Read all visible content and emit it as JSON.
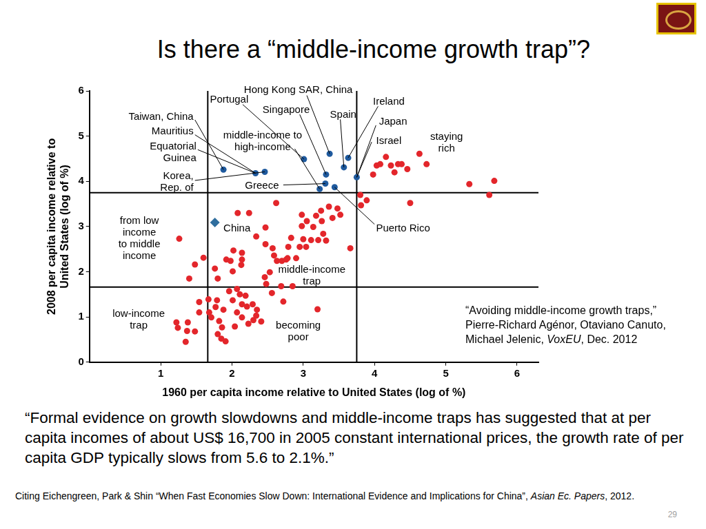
{
  "slide": {
    "title": "Is there a “middle-income growth trap”?",
    "citation": [
      [
        "“Avoiding middle-income growth traps,”"
      ],
      [
        "Pierre-Richard Agénor, Otaviano Canuto,"
      ],
      [
        "Michael Jelenic, ",
        "VoxEU",
        ", Dec. 2012"
      ]
    ],
    "quote": "“Formal evidence on growth slowdowns and middle-income traps has suggested that at per capita incomes of about US$ 16,700 in 2005 constant international prices, the growth rate of per capita GDP typically slows from 5.6 to 2.1%.”",
    "footer": [
      "Citing Eichengreen, Park & Shin “When Fast Economies Slow Down: International Evidence and Implications for China”, ",
      "Asian Ec. Papers",
      ", 2012."
    ],
    "page_number": "29"
  },
  "chart_data": {
    "type": "scatter",
    "x_label": "1960 per capita income relative to United States (log of %)",
    "y_label": [
      "2008 per capita income relative to",
      "United States (log of %)"
    ],
    "xlim": [
      0,
      6.3
    ],
    "xticks": [
      1,
      2,
      3,
      4,
      5,
      6
    ],
    "ylim": [
      0,
      6
    ],
    "yticks": [
      0,
      1,
      2,
      3,
      4,
      5,
      6
    ],
    "grid": false,
    "series": [
      {
        "color": "#e3262b",
        "marker": "circle",
        "x": [
          3.98,
          4.03,
          4.08,
          4.16,
          4.23,
          4.28,
          4.33,
          4.38,
          4.46,
          4.63,
          4.73,
          5.33,
          5.68,
          5.61,
          4.5,
          3.8,
          3.89,
          3.81,
          2.62,
          2.08,
          2.24,
          2.47,
          2.34,
          2.47,
          2.57,
          2.14,
          2.02,
          1.92,
          2.14,
          2.13,
          2.59,
          2.63,
          2.7,
          2.78,
          2.98,
          3.05,
          3.18,
          3.25,
          3.36,
          3.48,
          3.52,
          3.41,
          3.26,
          3.14,
          2.98,
          3.0,
          3.11,
          3.21,
          3.32,
          3.28,
          2.95,
          3.04,
          2.83,
          2.79,
          2.9,
          2.76,
          2.53,
          2.46,
          2.48,
          2.56,
          2.72,
          2.69,
          2.85,
          3.66,
          1.26,
          1.6,
          1.48,
          1.4,
          1.76,
          1.8,
          2.01,
          1.98,
          1.54,
          1.67,
          1.79,
          1.77,
          1.68,
          1.54,
          1.71,
          1.88,
          2.01,
          1.96,
          2.07,
          2.11,
          2.19,
          2.14,
          2.07,
          2.14,
          2.21,
          2.29,
          2.35,
          2.3,
          2.41,
          2.23,
          2.04,
          1.82,
          1.86,
          1.8,
          1.85,
          1.91,
          1.22,
          1.24,
          1.38,
          1.37,
          1.48,
          1.35,
          3.2,
          2.34
        ],
        "values": [
          4.15,
          4.35,
          4.38,
          4.54,
          4.35,
          4.2,
          4.38,
          4.38,
          4.27,
          4.61,
          4.38,
          3.94,
          4.01,
          3.7,
          3.52,
          3.7,
          3.58,
          3.47,
          3.52,
          3.3,
          3.3,
          2.98,
          2.78,
          2.61,
          2.52,
          2.42,
          2.47,
          2.27,
          2.27,
          2.15,
          2.36,
          2.24,
          2.24,
          2.3,
          3.26,
          3.12,
          3.24,
          3.35,
          3.44,
          3.4,
          3.26,
          3.19,
          3.12,
          2.99,
          3.01,
          2.72,
          2.7,
          2.7,
          2.69,
          2.84,
          2.55,
          2.55,
          2.75,
          2.55,
          2.3,
          2.27,
          1.99,
          1.88,
          1.73,
          1.53,
          1.34,
          1.68,
          1.68,
          2.52,
          2.73,
          2.31,
          2.16,
          1.85,
          2.07,
          1.85,
          2.01,
          2.24,
          1.33,
          1.39,
          1.37,
          1.22,
          1.1,
          1.1,
          0.99,
          1.16,
          1.37,
          1.57,
          1.62,
          1.5,
          1.47,
          1.28,
          1.1,
          0.99,
          1.23,
          1.28,
          1.16,
          0.93,
          0.9,
          0.85,
          0.79,
          0.91,
          0.77,
          0.62,
          0.52,
          0.46,
          0.88,
          0.76,
          0.88,
          0.69,
          0.68,
          0.45,
          1.17,
          1.03
        ]
      },
      {
        "color": "#1f5a9e",
        "marker": "circle",
        "x": [
          1.88,
          2.33,
          2.46,
          3.01,
          3.37,
          3.32,
          3.57,
          3.63,
          3.75,
          3.31,
          3.23,
          3.44
        ],
        "values": [
          4.26,
          4.18,
          4.21,
          4.49,
          4.61,
          4.15,
          4.31,
          4.52,
          4.09,
          3.95,
          3.83,
          3.87
        ]
      },
      {
        "color": "#2f6e9e",
        "marker": "diamond",
        "x": [
          1.76
        ],
        "values": [
          3.09
        ]
      }
    ],
    "reference_lines": {
      "x": [
        1.66,
        3.75
      ],
      "y": [
        1.66,
        3.75
      ],
      "color": "#000000"
    },
    "annotations": [
      {
        "lines": [
          "Hong Kong SAR, China"
        ]
      },
      {
        "lines": [
          "Portugal"
        ]
      },
      {
        "lines": [
          "Singapore"
        ]
      },
      {
        "lines": [
          "Spain"
        ]
      },
      {
        "lines": [
          "Ireland"
        ]
      },
      {
        "lines": [
          "Japan"
        ]
      },
      {
        "lines": [
          "Israel"
        ]
      },
      {
        "lines": [
          "staying",
          "rich"
        ]
      },
      {
        "lines": [
          "Taiwan, China"
        ]
      },
      {
        "lines": [
          "Mauritius"
        ]
      },
      {
        "lines": [
          "Equatorial",
          "Guinea"
        ]
      },
      {
        "lines": [
          "Korea,",
          "Rep. of"
        ]
      },
      {
        "lines": [
          "middle-income to",
          "high-income"
        ]
      },
      {
        "lines": [
          "Greece"
        ]
      },
      {
        "lines": [
          "China"
        ]
      },
      {
        "lines": [
          "Puerto Rico"
        ]
      },
      {
        "lines": [
          "from low",
          "income",
          "to middle",
          "income"
        ]
      },
      {
        "lines": [
          "middle-income",
          "trap"
        ]
      },
      {
        "lines": [
          "low-income",
          "trap"
        ]
      },
      {
        "lines": [
          "becoming",
          "poor"
        ]
      }
    ]
  }
}
